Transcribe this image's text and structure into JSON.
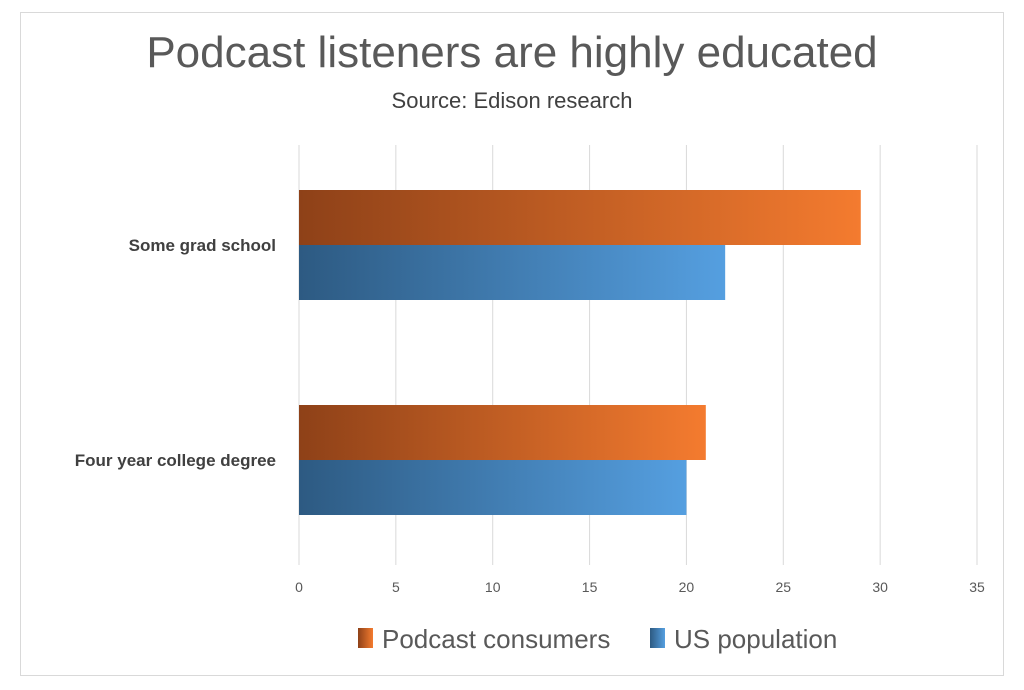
{
  "chart_data": {
    "type": "bar",
    "orientation": "horizontal",
    "title": "Podcast listeners are highly educated",
    "subtitle": "Source: Edison research",
    "categories": [
      "Some grad school",
      "Four year college degree"
    ],
    "series": [
      {
        "name": "Podcast consumers",
        "values": [
          29,
          21
        ],
        "color": "#f47b2f",
        "color_dark": "#8e4118"
      },
      {
        "name": "US population",
        "values": [
          22,
          20
        ],
        "color": "#559fe0",
        "color_dark": "#2d5a82"
      }
    ],
    "xlim": [
      0,
      35
    ],
    "xticks": [
      "0",
      "5",
      "10",
      "15",
      "20",
      "25",
      "30",
      "35"
    ],
    "grid": true,
    "legend": "bottom"
  }
}
